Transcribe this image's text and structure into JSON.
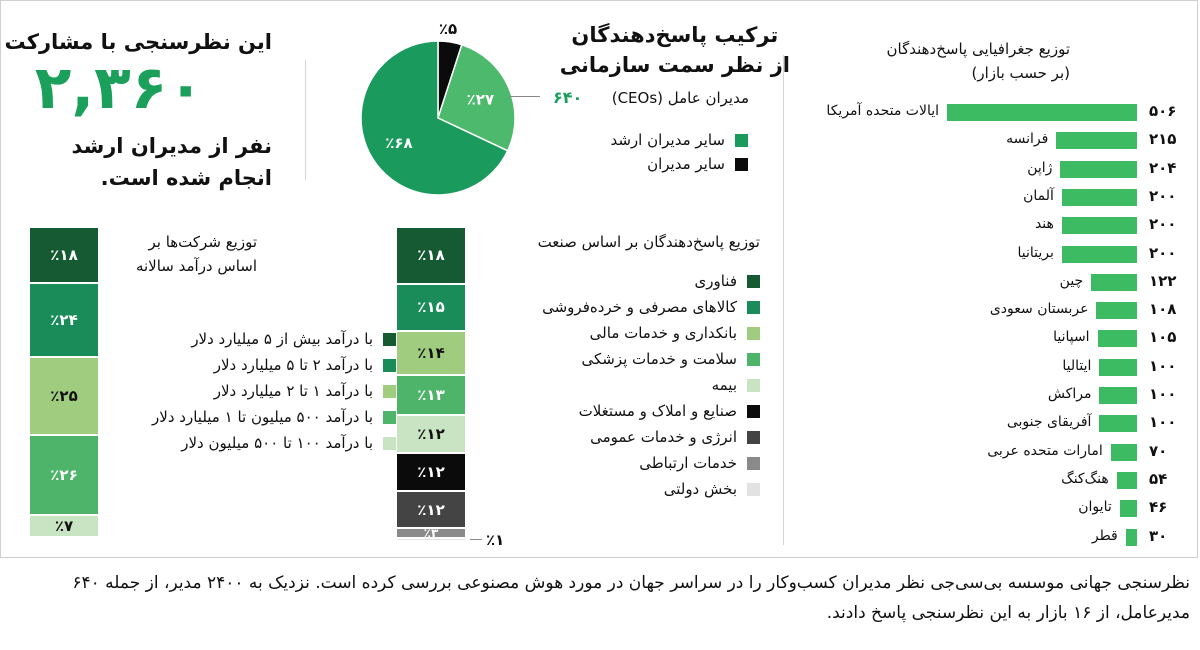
{
  "headline": {
    "title": "این نظرسنجی با مشارکت",
    "number": "۲,۳۶۰",
    "subtitle_line1": "نفر از مدیران ارشد",
    "subtitle_line2": "انجام شده است."
  },
  "caption": "نظرسنجی جهانی موسسه بی‌سی‌جی  نظر مدیران کسب‌وکار را در سراسر جهان در مورد هوش مصنوعی بررسی کرده است. نزدیک به ۲۴۰۰ مدیر، از جمله ۶۴۰ مدیرعامل، از ۱۶ بازار به این نظرسنجی پاسخ دادند.",
  "colors": {
    "dark_green": "#155a32",
    "green": "#1a8c5a",
    "light_green": "#9fcc7f",
    "medium_green": "#4db46a",
    "pale_green": "#c9e4c2",
    "black": "#0b0b0b",
    "dark_gray": "#444444",
    "gray": "#8a8a8a",
    "light_gray": "#e2e2e2",
    "bar_green": "#3dbb63",
    "accent_green": "#1aa05a"
  },
  "chart_data": [
    {
      "type": "pie",
      "title_line1": "ترکیب پاسخ‌دهندگان",
      "title_line2": "از نظر سمت سازمانی",
      "slices": [
        {
          "name": "سایر مدیران ارشد",
          "value": 68,
          "label": "٪۶۸",
          "color": "#1a9a5c"
        },
        {
          "name": "مدیران عامل (CEOs)",
          "value": 27,
          "label": "٪۲۷",
          "color": "#4cb96c"
        },
        {
          "name": "سایر مدیران",
          "value": 5,
          "label": "٪۵",
          "color": "#0b0b0b"
        }
      ],
      "callout": {
        "label": "مدیران عامل (CEOs)",
        "value": "۶۴۰"
      },
      "legend": [
        {
          "label": "سایر مدیران ارشد",
          "color": "#1a9a5c"
        },
        {
          "label": "سایر مدیران",
          "color": "#0b0b0b"
        }
      ]
    },
    {
      "type": "bar",
      "orientation": "horizontal",
      "title_line1": "توزیع جغرافیایی پاسخ‌دهندگان",
      "title_line2": "(بر حسب بازار)",
      "categories": [
        "ایالات متحده آمریکا",
        "فرانسه",
        "ژاپن",
        "آلمان",
        "هند",
        "بریتانیا",
        "چین",
        "عربستان سعودی",
        "اسپانیا",
        "ایتالیا",
        "مراکش",
        "آفریقای جنوبی",
        "امارات متحده عربی",
        "هنگ‌کنگ",
        "تایوان",
        "قطر"
      ],
      "values": [
        506,
        215,
        204,
        200,
        200,
        200,
        122,
        108,
        105,
        100,
        100,
        100,
        70,
        54,
        46,
        30
      ],
      "value_labels": [
        "۵۰۶",
        "۲۱۵",
        "۲۰۴",
        "۲۰۰",
        "۲۰۰",
        "۲۰۰",
        "۱۲۲",
        "۱۰۸",
        "۱۰۵",
        "۱۰۰",
        "۱۰۰",
        "۱۰۰",
        "۷۰",
        "۵۴",
        "۴۶",
        "۳۰"
      ],
      "color": "#3dbb63"
    },
    {
      "type": "bar",
      "stacked": true,
      "title_line1": "توزیع پاسخ‌دهندگان بر اساس صنعت",
      "series": [
        {
          "name": "فناوری",
          "value": 18,
          "label": "٪۱۸",
          "color": "#155a32"
        },
        {
          "name": "کالاهای مصرفی و خرده‌فروشی",
          "value": 15,
          "label": "٪۱۵",
          "color": "#1a8c5a"
        },
        {
          "name": "بانکداری و خدمات مالی",
          "value": 14,
          "label": "٪۱۴",
          "color": "#9fcc7f"
        },
        {
          "name": "سلامت و خدمات پزشکی",
          "value": 13,
          "label": "٪۱۳",
          "color": "#4db46a"
        },
        {
          "name": "بیمه",
          "value": 12,
          "label": "٪۱۲",
          "color": "#c9e4c2"
        },
        {
          "name": "صنایع و املاک و مستغلات",
          "value": 12,
          "label": "٪۱۲",
          "color": "#0b0b0b"
        },
        {
          "name": "انرژی و خدمات عمومی",
          "value": 12,
          "label": "٪۱۲",
          "color": "#444444"
        },
        {
          "name": "خدمات ارتباطی",
          "value": 3,
          "label": "٪۳",
          "color": "#8a8a8a"
        },
        {
          "name": "بخش دولتی",
          "value": 1,
          "label": "٪۱",
          "color": "#e2e2e2"
        }
      ]
    },
    {
      "type": "bar",
      "stacked": true,
      "title_line1": "توزیع شرکت‌ها بر",
      "title_line2": "اساس درآمد سالانه",
      "series": [
        {
          "name": "با درآمد بیش از ۵ میلیارد دلار",
          "value": 18,
          "label": "٪۱۸",
          "color": "#155a32"
        },
        {
          "name": "با درآمد ۲ تا ۵ میلیارد دلار",
          "value": 24,
          "label": "٪۲۴",
          "color": "#1a8c5a"
        },
        {
          "name": "با درآمد ۱ تا ۲ میلیارد دلار",
          "value": 25,
          "label": "٪۲۵",
          "color": "#9fcc7f"
        },
        {
          "name": "با درآمد ۵۰۰ میلیون تا ۱ میلیارد دلار",
          "value": 26,
          "label": "٪۲۶",
          "color": "#4db46a"
        },
        {
          "name": "با درآمد ۱۰۰ تا ۵۰۰ میلیون دلار",
          "value": 7,
          "label": "٪۷",
          "color": "#c9e4c2"
        }
      ]
    }
  ]
}
